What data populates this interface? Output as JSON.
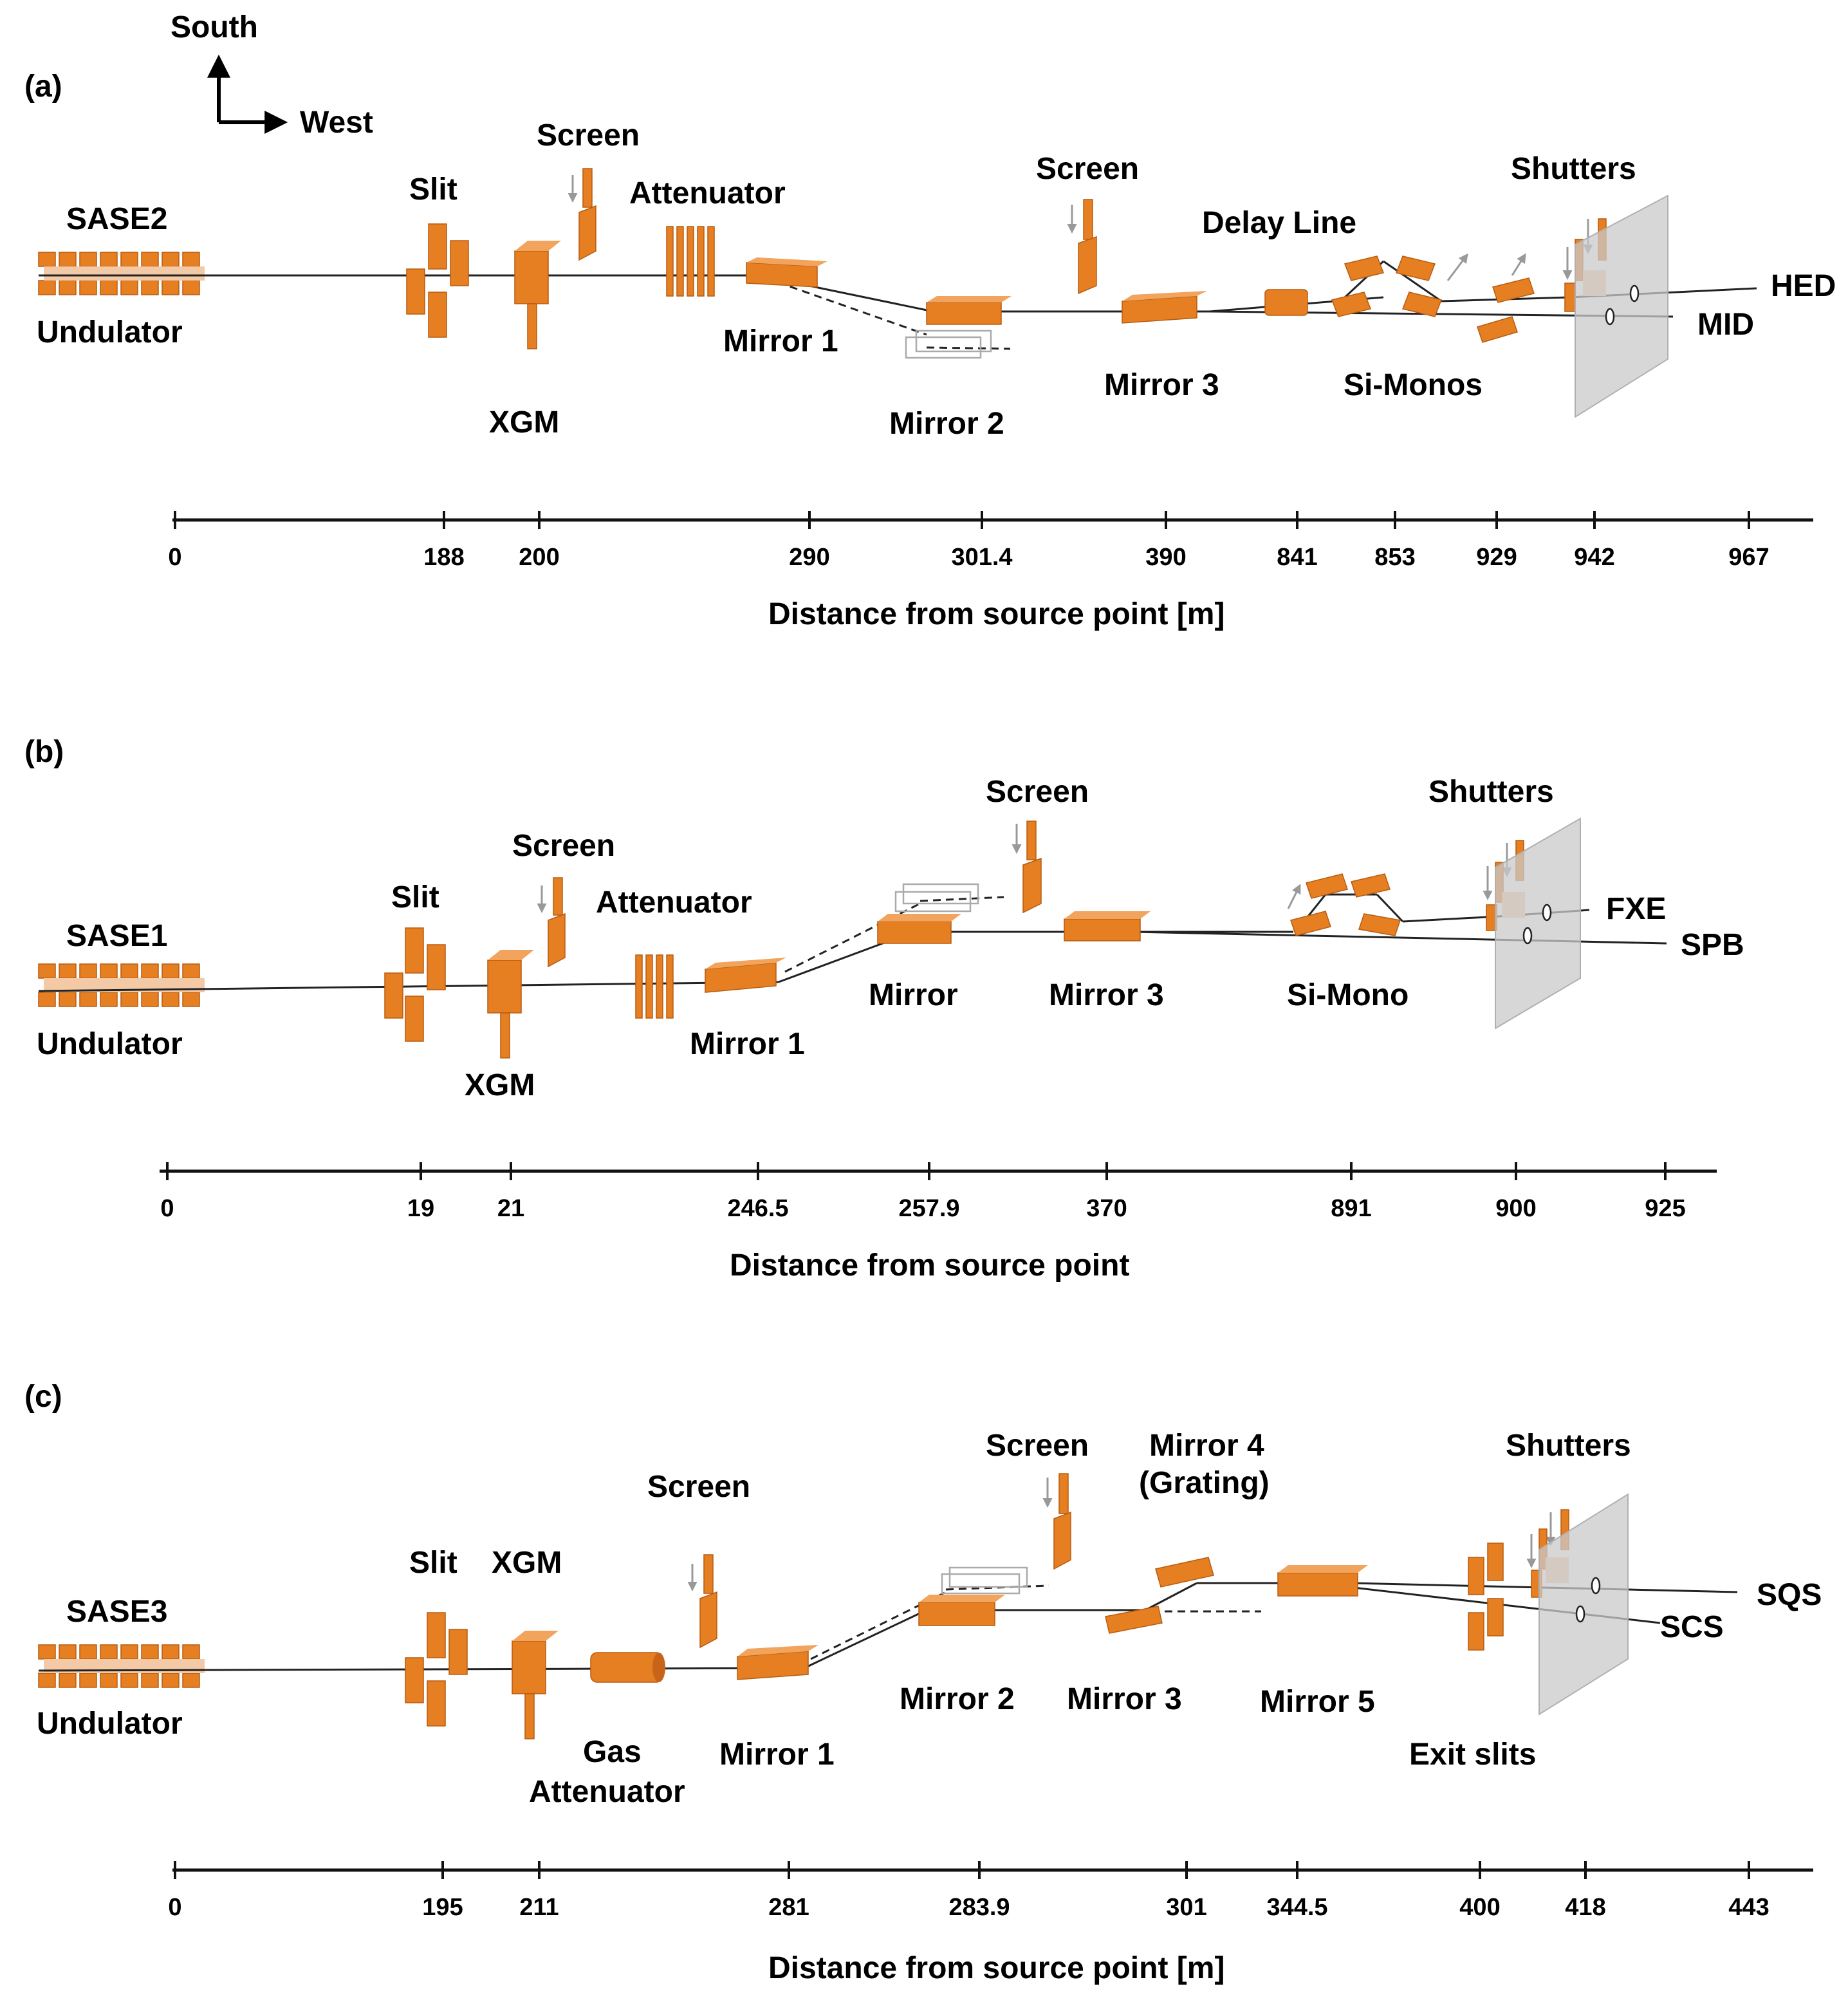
{
  "compass": {
    "north_label": "South",
    "east_label": "West"
  },
  "panels": [
    {
      "id": "a",
      "tag": "(a)",
      "source": "SASE2",
      "undulator": "Undulator",
      "labels": {
        "slit": "Slit",
        "xgm": "XGM",
        "screen1": "Screen",
        "attenuator": "Attenuator",
        "mirror1": "Mirror 1",
        "mirror2": "Mirror 2",
        "screen2": "Screen",
        "mirror3": "Mirror 3",
        "delay_line": "Delay Line",
        "si_monos": "Si-Monos",
        "shutters": "Shutters",
        "end1": "HED",
        "end2": "MID"
      },
      "axis": {
        "ticks": [
          "0",
          "188",
          "200",
          "290",
          "301.4",
          "390",
          "841",
          "853",
          "929",
          "942",
          "967"
        ],
        "title": "Distance from source point [m]"
      }
    },
    {
      "id": "b",
      "tag": "(b)",
      "source": "SASE1",
      "undulator": "Undulator",
      "labels": {
        "slit": "Slit",
        "xgm": "XGM",
        "screen1": "Screen",
        "attenuator": "Attenuator",
        "mirror1": "Mirror 1",
        "mirror": "Mirror",
        "screen2": "Screen",
        "mirror3": "Mirror 3",
        "si_mono": "Si-Mono",
        "shutters": "Shutters",
        "end1": "FXE",
        "end2": "SPB"
      },
      "axis": {
        "ticks": [
          "0",
          "19",
          "21",
          "246.5",
          "257.9",
          "370",
          "891",
          "900",
          "925"
        ],
        "title": "Distance from source point"
      }
    },
    {
      "id": "c",
      "tag": "(c)",
      "source": "SASE3",
      "undulator": "Undulator",
      "labels": {
        "slit": "Slit",
        "xgm": "XGM",
        "gas_attenuator_1": "Gas",
        "gas_attenuator_2": "Attenuator",
        "screen1": "Screen",
        "mirror1": "Mirror 1",
        "screen2": "Screen",
        "mirror2": "Mirror 2",
        "mirror3": "Mirror 3",
        "mirror4_1": "Mirror 4",
        "mirror4_2": "(Grating)",
        "mirror5": "Mirror 5",
        "shutters": "Shutters",
        "exit_slits": "Exit slits",
        "end1": "SQS",
        "end2": "SCS"
      },
      "axis": {
        "ticks": [
          "0",
          "195",
          "211",
          "281",
          "283.9",
          "301",
          "344.5",
          "400",
          "418",
          "443"
        ],
        "title": "Distance from source point [m]"
      }
    }
  ]
}
